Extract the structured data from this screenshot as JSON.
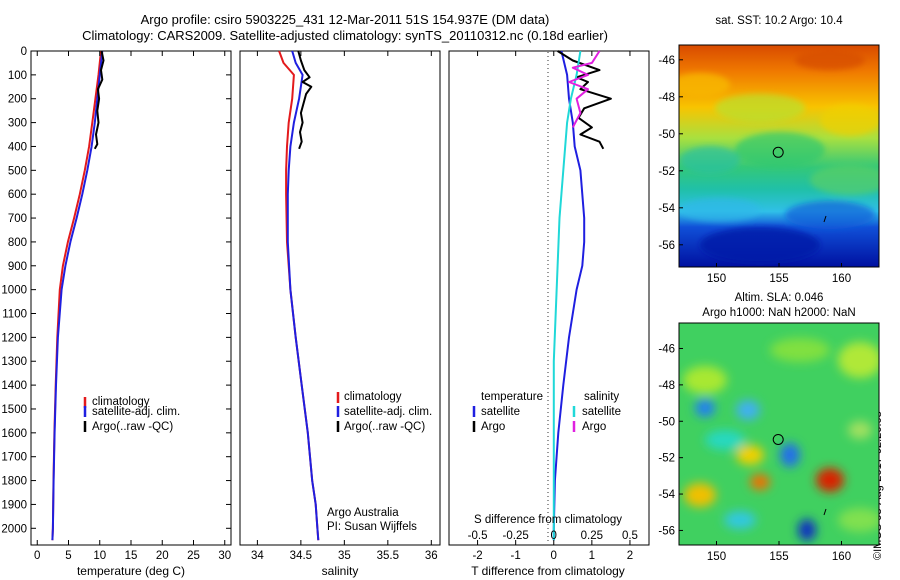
{
  "title_line1": "Argo profile: csiro 5903225_431 12-Mar-2011 51S 154.937E (DM data)",
  "title_line2": "Climatology: CARS2009. Satellite-adjusted climatology: synTS_20110312.nc (0.18d earlier)",
  "map_title_sst": "sat. SST: 10.2 Argo: 10.4",
  "map_title_sla_1": "Altim. SLA: 0.046",
  "map_title_sla_2": "Argo h1000: NaN h2000: NaN",
  "credit_line1": "Argo Australia",
  "credit_line2": "PI: Susan Wijffels",
  "timestamp": "©IMOS 03-Aug-2017 02:20:08",
  "colors": {
    "climatology": "#e31a1c",
    "satellite": "#1f1fe0",
    "argo": "#000000",
    "sal_satellite": "#20d8d8",
    "sal_argo": "#e020e0"
  },
  "legend_profiles": [
    "climatology",
    "satellite-adj. clim.",
    "Argo(..raw -QC)"
  ],
  "legend_diff": {
    "temp_header": "temperature",
    "sal_header": "salinity",
    "satellite": "satellite",
    "argo": "Argo"
  },
  "chart_data": [
    {
      "type": "line",
      "id": "temperature",
      "xlabel": "temperature (deg C)",
      "ylabel": "",
      "xlim": [
        -1,
        31
      ],
      "ylim": [
        2070,
        0
      ],
      "xticks": [
        "0",
        "5",
        "10",
        "15",
        "20",
        "25",
        "30"
      ],
      "yticks": [
        "0",
        "100",
        "200",
        "300",
        "400",
        "500",
        "600",
        "700",
        "800",
        "900",
        "1000",
        "1100",
        "1200",
        "1300",
        "1400",
        "1500",
        "1600",
        "1700",
        "1800",
        "1900",
        "2000"
      ],
      "series": [
        {
          "name": "climatology",
          "color_key": "climatology",
          "x": [
            10.2,
            9.8,
            9.3,
            8.8,
            8.3,
            7.6,
            6.8,
            5.9,
            4.9,
            4.1,
            3.6,
            3.2,
            2.95,
            2.75,
            2.6,
            2.5,
            2.42
          ],
          "y": [
            0,
            100,
            200,
            300,
            400,
            500,
            600,
            700,
            800,
            900,
            1000,
            1200,
            1400,
            1600,
            1800,
            2000,
            2050
          ]
        },
        {
          "name": "satellite-adj. clim.",
          "color_key": "satellite",
          "x": [
            10.4,
            10.0,
            9.6,
            9.2,
            8.7,
            8.0,
            7.2,
            6.3,
            5.3,
            4.5,
            3.9,
            3.3,
            3.0,
            2.78,
            2.62,
            2.5,
            2.42
          ],
          "y": [
            0,
            100,
            200,
            300,
            400,
            500,
            600,
            700,
            800,
            900,
            1000,
            1200,
            1400,
            1600,
            1800,
            2000,
            2050
          ]
        },
        {
          "name": "Argo(..raw -QC)",
          "color_key": "argo",
          "x": [
            10.3,
            10.6,
            10.2,
            10.4,
            9.7,
            9.9,
            9.6,
            9.8,
            9.4,
            9.6,
            9.2
          ],
          "y": [
            0,
            40,
            80,
            120,
            160,
            200,
            250,
            300,
            350,
            390,
            410
          ]
        }
      ]
    },
    {
      "type": "line",
      "id": "salinity",
      "xlabel": "salinity",
      "xlim": [
        33.8,
        36.1
      ],
      "ylim": [
        2070,
        0
      ],
      "xticks": [
        "34",
        "34.5",
        "35",
        "35.5",
        "36"
      ],
      "series": [
        {
          "name": "climatology",
          "color_key": "climatology",
          "x": [
            34.25,
            34.3,
            34.42,
            34.4,
            34.36,
            34.34,
            34.33,
            34.33,
            34.34,
            34.38,
            34.44,
            34.51,
            34.58,
            34.63,
            34.67,
            34.69,
            34.7
          ],
          "y": [
            0,
            50,
            100,
            200,
            300,
            400,
            500,
            600,
            800,
            1000,
            1200,
            1400,
            1600,
            1800,
            1900,
            2000,
            2050
          ]
        },
        {
          "name": "satellite-adj. clim.",
          "color_key": "satellite",
          "x": [
            34.4,
            34.44,
            34.52,
            34.48,
            34.42,
            34.38,
            34.36,
            34.35,
            34.35,
            34.38,
            34.44,
            34.51,
            34.58,
            34.63,
            34.67,
            34.69,
            34.7
          ],
          "y": [
            0,
            50,
            100,
            200,
            300,
            400,
            500,
            600,
            800,
            1000,
            1200,
            1400,
            1600,
            1800,
            1900,
            2000,
            2050
          ]
        },
        {
          "name": "Argo(..raw -QC)",
          "color_key": "argo",
          "x": [
            34.47,
            34.5,
            34.54,
            34.6,
            34.52,
            34.62,
            34.56,
            34.53,
            34.5,
            34.52,
            34.49,
            34.51,
            34.48
          ],
          "y": [
            0,
            40,
            80,
            110,
            130,
            150,
            180,
            220,
            260,
            300,
            340,
            380,
            410
          ]
        }
      ]
    },
    {
      "type": "line",
      "id": "difference",
      "xlabel": "T difference from climatology",
      "xlabel_top": "S difference from climatology",
      "xlim": [
        -2.75,
        2.5
      ],
      "ylim": [
        2070,
        0
      ],
      "xticks": [
        "-2",
        "-1",
        "0",
        "1",
        "2"
      ],
      "xticks_top": [
        "-0.5",
        "-0.25",
        "0",
        "0.25",
        "0.5"
      ],
      "series": [
        {
          "name": "temperature satellite",
          "color_key": "satellite",
          "x": [
            0.2,
            0.35,
            0.4,
            0.5,
            0.55,
            0.7,
            0.75,
            0.8,
            0.8,
            0.75,
            0.6,
            0.4,
            0.25,
            0.12,
            0.03,
            0,
            0
          ],
          "y": [
            0,
            100,
            200,
            300,
            400,
            500,
            600,
            700,
            800,
            900,
            1000,
            1200,
            1400,
            1600,
            1800,
            2000,
            2050
          ]
        },
        {
          "name": "temperature Argo",
          "color_key": "argo",
          "x": [
            0.1,
            0.5,
            1.2,
            0.6,
            0.9,
            0.7,
            1.5,
            0.8,
            0.65,
            1.0,
            0.7,
            1.2,
            1.3
          ],
          "y": [
            0,
            40,
            80,
            110,
            130,
            160,
            200,
            240,
            280,
            320,
            350,
            380,
            410
          ]
        },
        {
          "name": "salinity satellite",
          "color_key": "sal_satellite",
          "x": [
            0.7,
            0.6,
            0.45,
            0.35,
            0.3,
            0.25,
            0.2,
            0.15,
            0.1,
            0.05,
            0,
            0,
            0
          ],
          "y": [
            0,
            100,
            200,
            300,
            400,
            500,
            600,
            700,
            900,
            1100,
            1300,
            1600,
            2050
          ]
        },
        {
          "name": "salinity Argo",
          "color_key": "sal_argo",
          "x": [
            1.2,
            1.0,
            0.5,
            0.9,
            0.4,
            0.9,
            0.6,
            0.7,
            0.5
          ],
          "y": [
            0,
            50,
            70,
            100,
            130,
            160,
            200,
            260,
            320
          ]
        }
      ]
    },
    {
      "type": "heatmap",
      "id": "sst-map",
      "title": "sat. SST: 10.2 Argo: 10.4",
      "xticks": [
        "150",
        "155",
        "160"
      ],
      "yticks": [
        "-46",
        "-48",
        "-50",
        "-52",
        "-54",
        "-56"
      ],
      "xlim": [
        147,
        163
      ],
      "ylim": [
        -57.2,
        -45.2
      ],
      "argo_position": [
        154.937,
        -51
      ]
    },
    {
      "type": "heatmap",
      "id": "sla-map",
      "title": "Altim. SLA: 0.046 / Argo h1000: NaN h2000: NaN",
      "xticks": [
        "150",
        "155",
        "160"
      ],
      "yticks": [
        "-46",
        "-48",
        "-50",
        "-52",
        "-54",
        "-56"
      ],
      "xlim": [
        147,
        163
      ],
      "ylim": [
        -56.8,
        -44.6
      ],
      "argo_position": [
        154.937,
        -51
      ]
    }
  ]
}
